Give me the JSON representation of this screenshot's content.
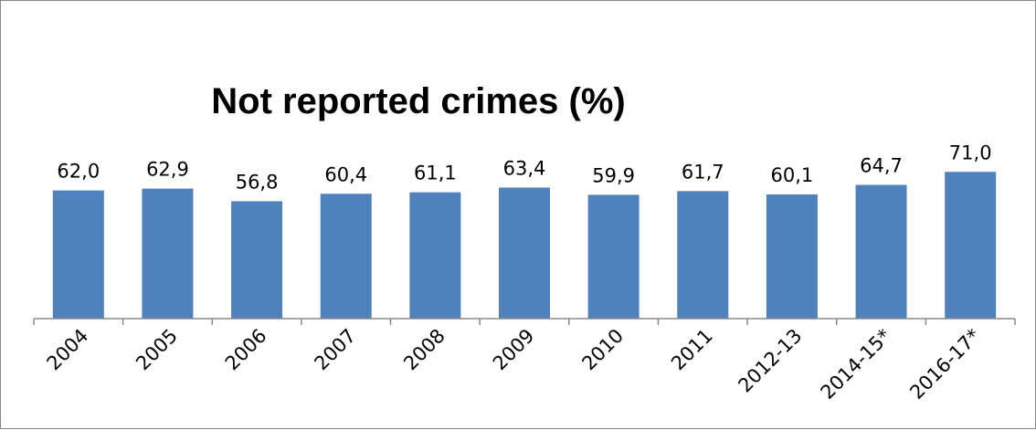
{
  "chart_data": {
    "type": "bar",
    "title": "Not reported crimes (%)",
    "categories": [
      "2004",
      "2005",
      "2006",
      "2007",
      "2008",
      "2009",
      "2010",
      "2011",
      "2012-13",
      "2014-15*",
      "2016-17*"
    ],
    "values": [
      62.0,
      62.9,
      56.8,
      60.4,
      61.1,
      63.4,
      59.9,
      61.7,
      60.1,
      64.7,
      71.0
    ],
    "data_labels": [
      "62,0",
      "62,9",
      "56,8",
      "60,4",
      "61,1",
      "63,4",
      "59,9",
      "61,7",
      "60,1",
      "64,7",
      "71,0"
    ],
    "xlabel": "",
    "ylabel": "",
    "ylim": [
      0,
      80
    ],
    "grid": false,
    "legend": "none",
    "bar_color": "#4F81BD",
    "axis_color": "#888888"
  }
}
